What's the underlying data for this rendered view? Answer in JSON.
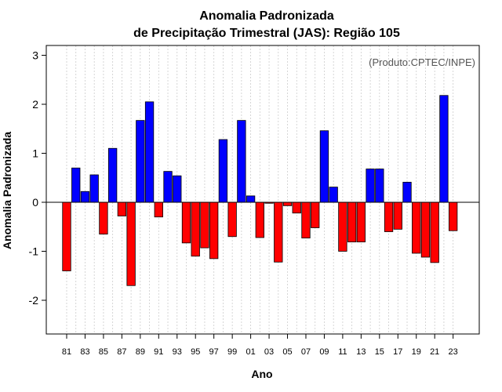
{
  "chart_data": {
    "type": "bar",
    "title_line1": "Anomalia Padronizada",
    "title_line2": "de Precipitação Trimestral (JAS): Região 105",
    "xlabel": "Ano",
    "ylabel": "Anomalia Padronizada",
    "credit": "(Produto:CPTEC/INPE)",
    "ylim": [
      -2.7,
      3.2
    ],
    "yticks": [
      -2,
      -1,
      0,
      1,
      2,
      3
    ],
    "ytick_labels": [
      "-2",
      "-1",
      "0",
      "1",
      "2",
      "3"
    ],
    "x_tick_labels": [
      "81",
      "83",
      "85",
      "87",
      "89",
      "91",
      "93",
      "95",
      "97",
      "99",
      "01",
      "03",
      "05",
      "07",
      "09",
      "11",
      "13",
      "15",
      "17",
      "19",
      "21",
      "23"
    ],
    "categories": [
      "1981",
      "1982",
      "1983",
      "1984",
      "1985",
      "1986",
      "1987",
      "1988",
      "1989",
      "1990",
      "1991",
      "1992",
      "1993",
      "1994",
      "1995",
      "1996",
      "1997",
      "1998",
      "1999",
      "2000",
      "2001",
      "2002",
      "2003",
      "2004",
      "2005",
      "2006",
      "2007",
      "2008",
      "2009",
      "2010",
      "2011",
      "2012",
      "2013",
      "2014",
      "2015",
      "2016",
      "2017",
      "2018",
      "2019",
      "2020",
      "2021",
      "2022",
      "2023"
    ],
    "values": [
      -1.4,
      0.7,
      0.22,
      0.56,
      -0.65,
      1.1,
      -0.28,
      -1.7,
      1.67,
      2.05,
      -0.3,
      0.63,
      0.54,
      -0.83,
      -1.1,
      -0.93,
      -1.15,
      1.28,
      -0.7,
      1.67,
      0.13,
      -0.72,
      -0.02,
      -1.22,
      -0.07,
      -0.22,
      -0.73,
      -0.52,
      1.46,
      0.31,
      -1.0,
      -0.81,
      -0.81,
      0.68,
      0.68,
      -0.6,
      -0.55,
      0.41,
      -1.04,
      -1.12,
      -1.23,
      2.18,
      -0.58
    ],
    "colors": {
      "positive": "#0000ff",
      "negative": "#ff0000",
      "grid": "#cccccc",
      "axis": "#000000"
    }
  }
}
